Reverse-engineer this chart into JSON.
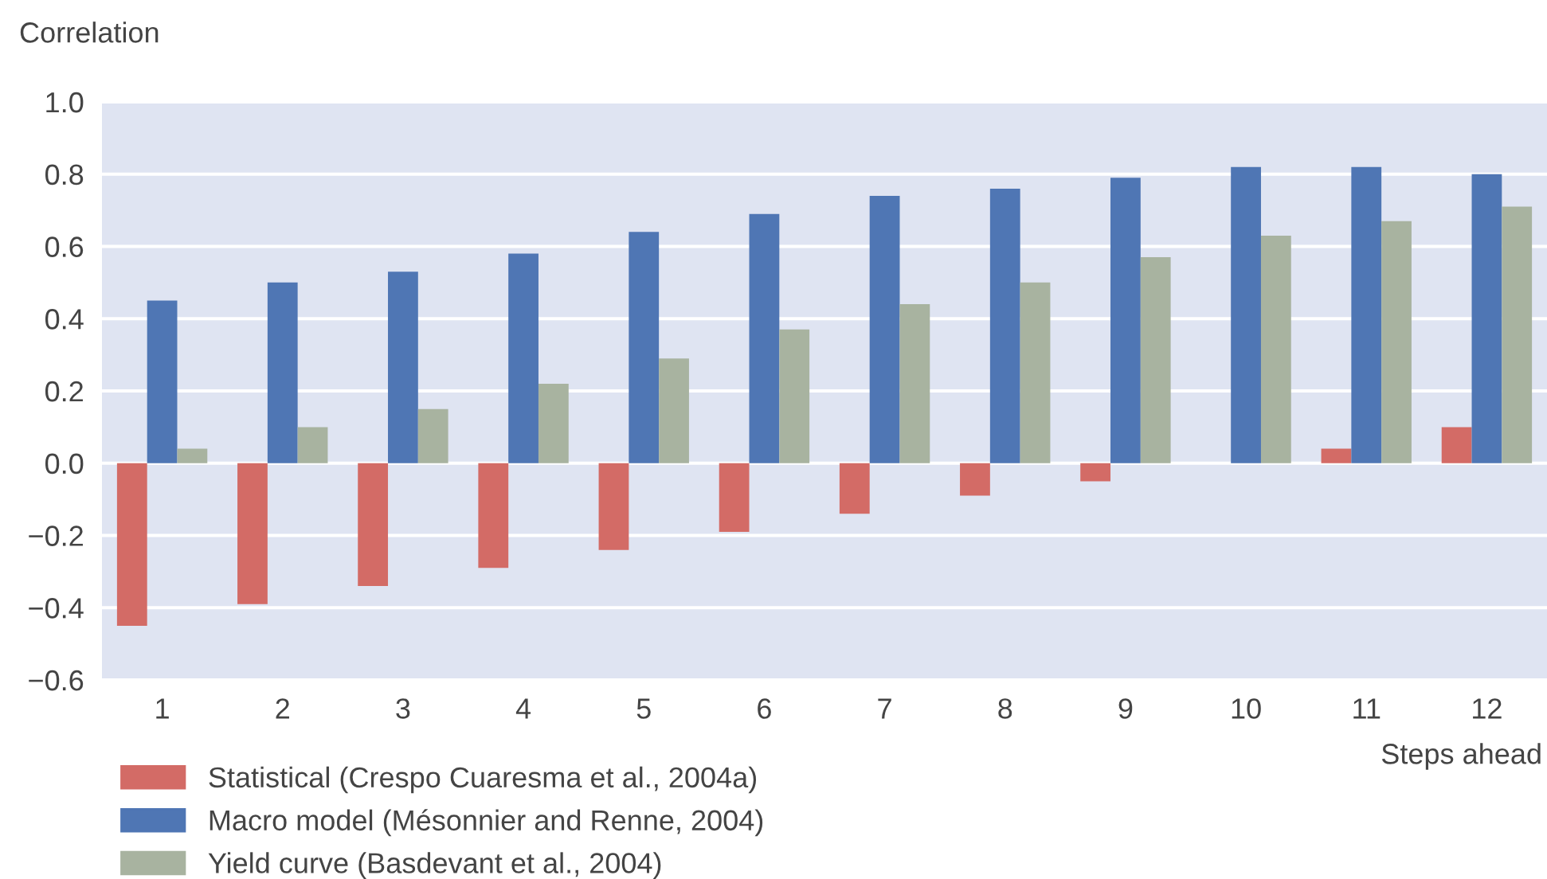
{
  "chart_data": {
    "type": "bar",
    "ylabel": "Correlation",
    "xlabel": "Steps ahead",
    "categories": [
      "1",
      "2",
      "3",
      "4",
      "5",
      "6",
      "7",
      "8",
      "9",
      "10",
      "11",
      "12"
    ],
    "series": [
      {
        "name": "Statistical (Crespo Cuaresma et al., 2004a)",
        "color": "#d36b66",
        "values": [
          -0.45,
          -0.39,
          -0.34,
          -0.29,
          -0.24,
          -0.19,
          -0.14,
          -0.09,
          -0.05,
          0.0,
          0.04,
          0.1
        ]
      },
      {
        "name": "Macro model (Mésonnier and Renne, 2004)",
        "color": "#4f76b4",
        "values": [
          0.45,
          0.5,
          0.53,
          0.58,
          0.64,
          0.69,
          0.74,
          0.76,
          0.79,
          0.82,
          0.82,
          0.8
        ]
      },
      {
        "name": "Yield curve (Basdevant et al., 2004)",
        "color": "#a8b3a0",
        "values": [
          0.04,
          0.1,
          0.15,
          0.22,
          0.29,
          0.37,
          0.44,
          0.5,
          0.57,
          0.63,
          0.67,
          0.71
        ]
      }
    ],
    "ylim": [
      -0.6,
      1.0
    ],
    "yticks": [
      {
        "value": -0.6,
        "label": "−0.6"
      },
      {
        "value": -0.4,
        "label": "−0.4"
      },
      {
        "value": -0.2,
        "label": "−0.2"
      },
      {
        "value": 0.0,
        "label": "0.0"
      },
      {
        "value": 0.2,
        "label": "0.2"
      },
      {
        "value": 0.4,
        "label": "0.4"
      },
      {
        "value": 0.6,
        "label": "0.6"
      },
      {
        "value": 0.8,
        "label": "0.8"
      },
      {
        "value": 1.0,
        "label": "1.0"
      }
    ],
    "grid": "y",
    "legend": "bottom"
  }
}
